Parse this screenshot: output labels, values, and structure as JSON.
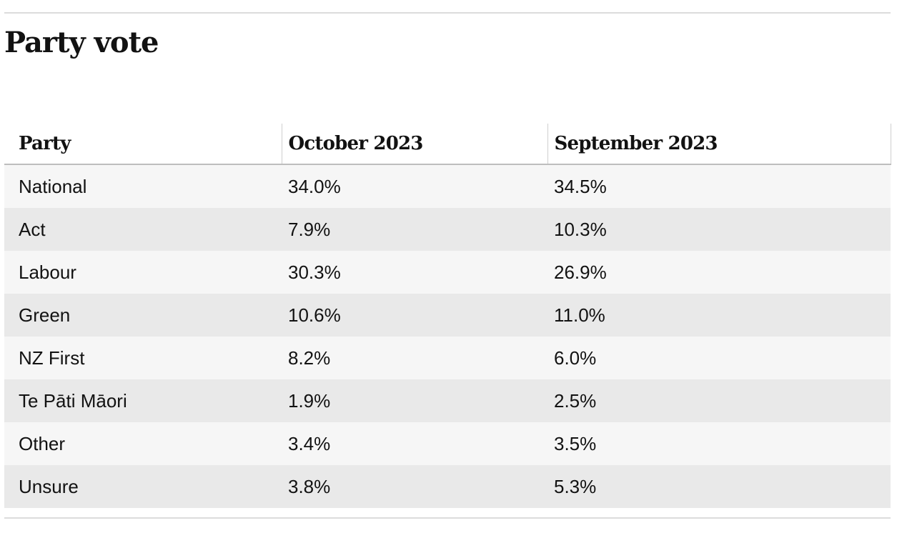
{
  "title": "Party vote",
  "table": {
    "headers": [
      "Party",
      "October 2023",
      "September 2023"
    ],
    "rows": [
      [
        "National",
        "34.0%",
        "34.5%"
      ],
      [
        "Act",
        "7.9%",
        "10.3%"
      ],
      [
        "Labour",
        "30.3%",
        "26.9%"
      ],
      [
        "Green",
        "10.6%",
        "11.0%"
      ],
      [
        "NZ First",
        "8.2%",
        "6.0%"
      ],
      [
        "Te Pāti Māori",
        "1.9%",
        "2.5%"
      ],
      [
        "Other",
        "3.4%",
        "3.5%"
      ],
      [
        "Unsure",
        "3.8%",
        "5.3%"
      ]
    ]
  },
  "colors": {
    "row_odd": "#f6f6f6",
    "row_even": "#e9e9e9",
    "text": "#121212",
    "rule": "#dcdcdc"
  }
}
